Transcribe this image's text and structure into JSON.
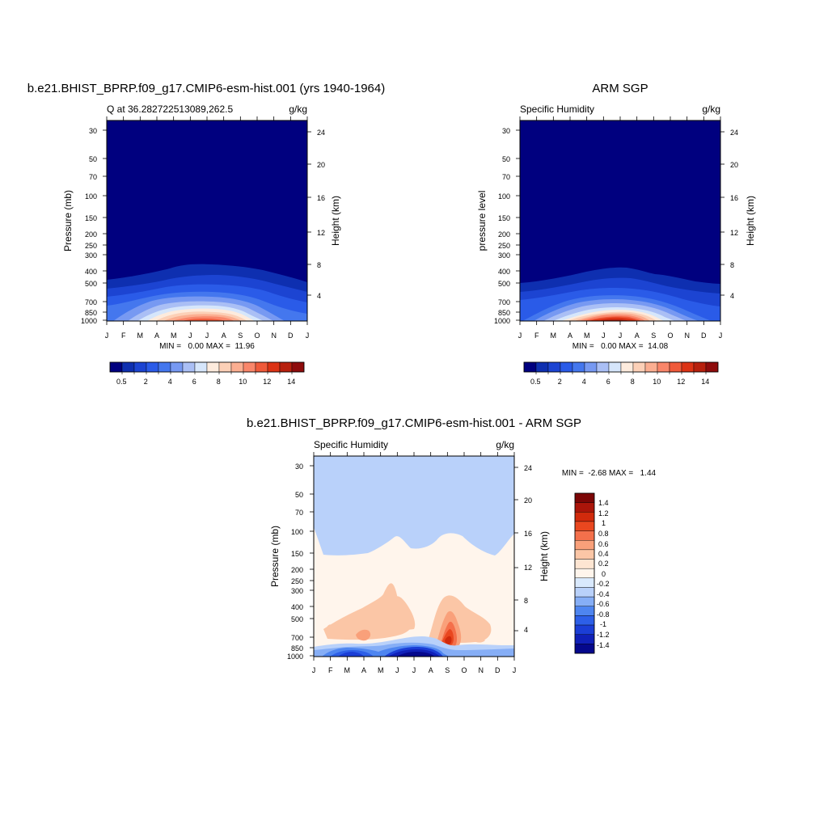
{
  "palette": {
    "seq": [
      "#00007f",
      "#0e2fb0",
      "#1c44d2",
      "#2a5be8",
      "#4477ee",
      "#7799f2",
      "#aabff5",
      "#d6e6fb",
      "#fdebdd",
      "#fcd0b7",
      "#fbae91",
      "#f9866a",
      "#ef5a3a",
      "#dc3315",
      "#b7200d",
      "#8e0c0c"
    ],
    "div": [
      "#05088c",
      "#1020b8",
      "#1b3ed6",
      "#2d5fe8",
      "#4e85f0",
      "#86aef6",
      "#b9d1fa",
      "#d9e9fd",
      "#fff5ec",
      "#fde5d2",
      "#fbc6a6",
      "#f9a07a",
      "#f4704b",
      "#e9471f",
      "#d12a0c",
      "#ab150a",
      "#7c0606"
    ]
  },
  "chart_data": [
    {
      "id": "model",
      "type": "heatmap",
      "title": "b.e21.BHIST_BPRP.f09_g17.CMIP6-esm-hist.001 (yrs 1940-1964)",
      "left_label": "Q at 36.282722513089,262.5",
      "right_label": "g/kg",
      "ylabel": "Pressure (mb)",
      "y2label": "Height (km)",
      "months": [
        "J",
        "F",
        "M",
        "A",
        "M",
        "J",
        "J",
        "A",
        "S",
        "O",
        "N",
        "D",
        "J"
      ],
      "pressure_ticks": [
        30,
        50,
        70,
        100,
        150,
        200,
        250,
        300,
        400,
        500,
        700,
        850,
        1000
      ],
      "height_ticks": [
        4,
        8,
        12,
        16,
        20,
        24
      ],
      "stats": "MIN =   0.00 MAX =  11.96",
      "min": 0.0,
      "max": 11.96,
      "colorbar_labels": [
        "0.5",
        "2",
        "4",
        "6",
        "8",
        "10",
        "12",
        "14"
      ],
      "colorbar_orientation": "horizontal"
    },
    {
      "id": "obs",
      "type": "heatmap",
      "title": "ARM SGP",
      "left_label": "Specific Humidity",
      "right_label": "g/kg",
      "ylabel": "pressure level",
      "y2label": "Height (km)",
      "months": [
        "J",
        "F",
        "M",
        "A",
        "M",
        "J",
        "J",
        "A",
        "S",
        "O",
        "N",
        "D",
        "J"
      ],
      "pressure_ticks": [
        30,
        50,
        70,
        100,
        150,
        200,
        250,
        300,
        400,
        500,
        700,
        850,
        1000
      ],
      "height_ticks": [
        4,
        8,
        12,
        16,
        20,
        24
      ],
      "stats": "MIN =   0.00 MAX =  14.08",
      "min": 0.0,
      "max": 14.08,
      "colorbar_labels": [
        "0.5",
        "2",
        "4",
        "6",
        "8",
        "10",
        "12",
        "14"
      ],
      "colorbar_orientation": "horizontal"
    },
    {
      "id": "diff",
      "type": "heatmap",
      "title": "b.e21.BHIST_BPRP.f09_g17.CMIP6-esm-hist.001 - ARM SGP",
      "left_label": "Specific Humidity",
      "right_label": "g/kg",
      "ylabel": "Pressure (mb)",
      "y2label": "Height (km)",
      "months": [
        "J",
        "F",
        "M",
        "A",
        "M",
        "J",
        "J",
        "A",
        "S",
        "O",
        "N",
        "D",
        "J"
      ],
      "pressure_ticks": [
        30,
        50,
        70,
        100,
        150,
        200,
        250,
        300,
        400,
        500,
        700,
        850,
        1000
      ],
      "height_ticks": [
        4,
        8,
        12,
        16,
        20,
        24
      ],
      "stats": "MIN =  -2.68 MAX =   1.44",
      "min": -2.68,
      "max": 1.44,
      "colorbar_labels": [
        "1.4",
        "1.2",
        "1",
        "0.8",
        "0.6",
        "0.4",
        "0.2",
        "0",
        "-0.2",
        "-0.4",
        "-0.6",
        "-0.8",
        "-1",
        "-1.2",
        "-1.4"
      ],
      "colorbar_orientation": "vertical"
    }
  ]
}
